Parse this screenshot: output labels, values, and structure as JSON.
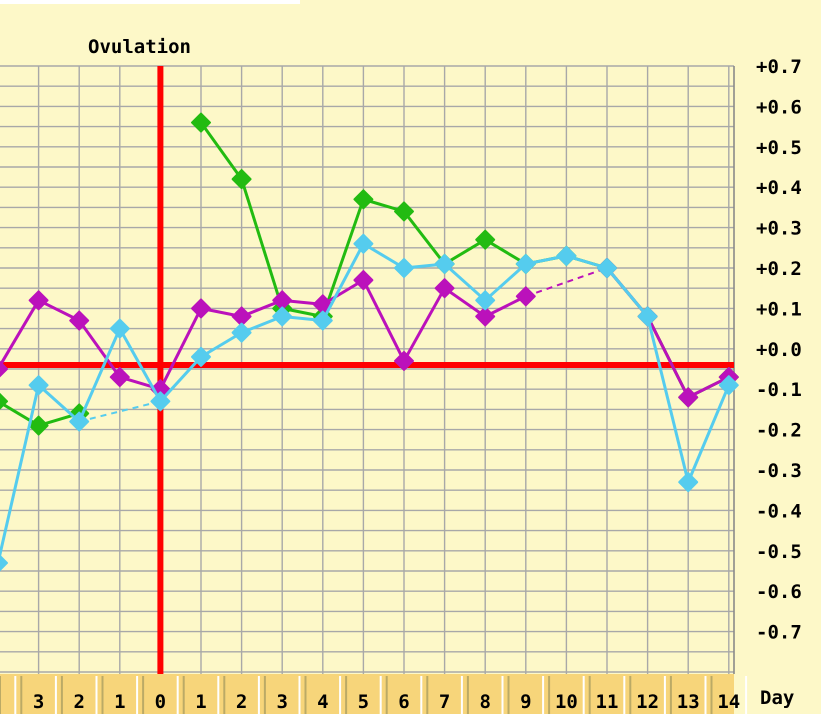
{
  "chart_data": {
    "type": "line",
    "ovulation_label": "Ovulation",
    "day_axis_label": "Day",
    "x_categories": [
      "",
      "3",
      "2",
      "1",
      "0",
      "1",
      "2",
      "3",
      "4",
      "5",
      "6",
      "7",
      "8",
      "9",
      "10",
      "11",
      "12",
      "13",
      "14"
    ],
    "y_tick_labels": [
      "+0.7",
      "+0.6",
      "+0.5",
      "+0.4",
      "+0.3",
      "+0.2",
      "+0.1",
      "+0.0",
      "-0.1",
      "-0.2",
      "-0.3",
      "-0.4",
      "-0.5",
      "-0.6",
      "-0.7"
    ],
    "ylim": [
      -0.85,
      0.75
    ],
    "grid": true,
    "ovulation_index": 4,
    "baseline_value": -0.04,
    "series": [
      {
        "color": "#22bb11",
        "values": [
          -0.13,
          -0.19,
          -0.16,
          null,
          null,
          0.56,
          0.42,
          0.1,
          0.08,
          0.37,
          0.34,
          0.21,
          0.27,
          0.21,
          0.23,
          0.2,
          0.08,
          -0.12,
          -0.07
        ],
        "dashed_gaps": []
      },
      {
        "color": "#bb11bb",
        "values": [
          -0.05,
          0.12,
          0.07,
          -0.07,
          -0.1,
          0.1,
          0.08,
          0.12,
          0.11,
          0.17,
          -0.03,
          0.15,
          0.08,
          0.13,
          null,
          0.2,
          0.08,
          -0.12,
          -0.07
        ],
        "dashed_gaps": [
          [
            13,
            15
          ]
        ]
      },
      {
        "color": "#55ccee",
        "values": [
          -0.53,
          -0.09,
          -0.18,
          0.05,
          -0.13,
          -0.02,
          0.04,
          0.08,
          0.07,
          0.26,
          0.2,
          0.21,
          0.12,
          0.21,
          0.23,
          0.2,
          0.08,
          -0.33,
          -0.09
        ],
        "dashed_gaps": [
          [
            2,
            4
          ]
        ]
      }
    ]
  }
}
